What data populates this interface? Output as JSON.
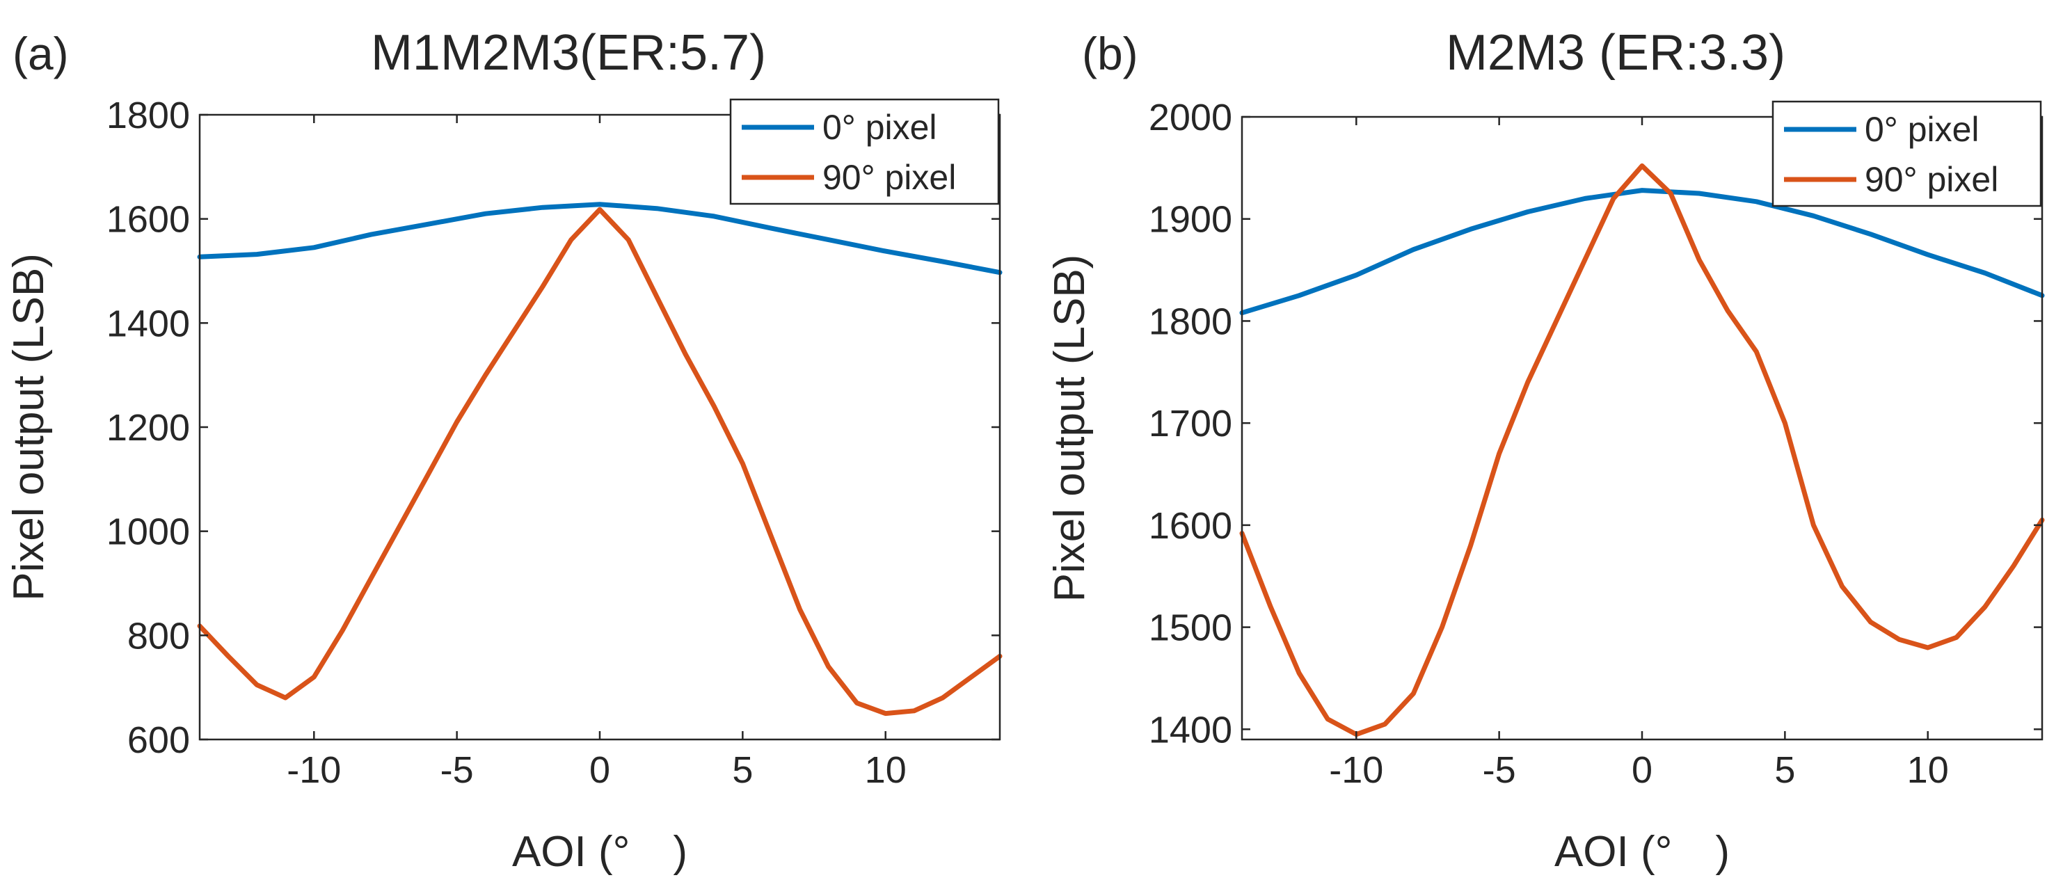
{
  "chart_data": [
    {
      "type": "line",
      "panel_label": "(a)",
      "title": "M1M2M3(ER:5.7)",
      "xlabel": "AOI (°　)",
      "ylabel": "Pixel output (LSB)",
      "xlim": [
        -14,
        14
      ],
      "ylim": [
        600,
        1800
      ],
      "xticks": [
        -10,
        -5,
        0,
        5,
        10
      ],
      "yticks": [
        600,
        800,
        1000,
        1200,
        1400,
        1600,
        1800
      ],
      "legend_position": "top-right",
      "series": [
        {
          "name": "0° pixel",
          "color": "#0072BD",
          "x": [
            -14,
            -12,
            -10,
            -8,
            -6,
            -4,
            -2,
            0,
            2,
            4,
            6,
            8,
            10,
            12,
            14
          ],
          "y": [
            1527,
            1532,
            1545,
            1570,
            1590,
            1610,
            1622,
            1628,
            1620,
            1605,
            1582,
            1560,
            1538,
            1518,
            1497
          ]
        },
        {
          "name": "90° pixel",
          "color": "#D95319",
          "x": [
            -14,
            -13,
            -12,
            -11,
            -10,
            -9,
            -8,
            -7,
            -6,
            -5,
            -4,
            -3,
            -2,
            -1,
            0,
            1,
            2,
            3,
            4,
            5,
            6,
            7,
            8,
            9,
            10,
            11,
            12,
            13,
            14
          ],
          "y": [
            818,
            760,
            705,
            680,
            720,
            810,
            910,
            1010,
            1110,
            1210,
            1300,
            1385,
            1470,
            1560,
            1618,
            1560,
            1450,
            1340,
            1240,
            1130,
            990,
            850,
            740,
            670,
            650,
            655,
            680,
            720,
            760
          ]
        }
      ]
    },
    {
      "type": "line",
      "panel_label": "(b)",
      "title": "M2M3 (ER:3.3)",
      "xlabel": "AOI (°　)",
      "ylabel": "Pixel output (LSB)",
      "xlim": [
        -14,
        14
      ],
      "ylim": [
        1390,
        2000
      ],
      "xticks": [
        -10,
        -5,
        0,
        5,
        10
      ],
      "yticks": [
        1400,
        1500,
        1600,
        1700,
        1800,
        1900,
        2000
      ],
      "legend_position": "top-right",
      "series": [
        {
          "name": "0° pixel",
          "color": "#0072BD",
          "x": [
            -14,
            -12,
            -10,
            -8,
            -6,
            -4,
            -2,
            0,
            2,
            4,
            6,
            8,
            10,
            12,
            14
          ],
          "y": [
            1808,
            1825,
            1845,
            1870,
            1890,
            1907,
            1920,
            1928,
            1925,
            1917,
            1903,
            1885,
            1865,
            1847,
            1825
          ]
        },
        {
          "name": "90° pixel",
          "color": "#D95319",
          "x": [
            -14,
            -13,
            -12,
            -11,
            -10,
            -9,
            -8,
            -7,
            -6,
            -5,
            -4,
            -3,
            -2,
            -1,
            0,
            1,
            2,
            3,
            4,
            5,
            6,
            7,
            8,
            9,
            10,
            11,
            12,
            13,
            14
          ],
          "y": [
            1592,
            1520,
            1455,
            1410,
            1395,
            1405,
            1435,
            1500,
            1580,
            1670,
            1740,
            1800,
            1860,
            1920,
            1952,
            1925,
            1860,
            1810,
            1770,
            1700,
            1600,
            1540,
            1505,
            1488,
            1480,
            1490,
            1520,
            1560,
            1605
          ]
        }
      ]
    }
  ]
}
